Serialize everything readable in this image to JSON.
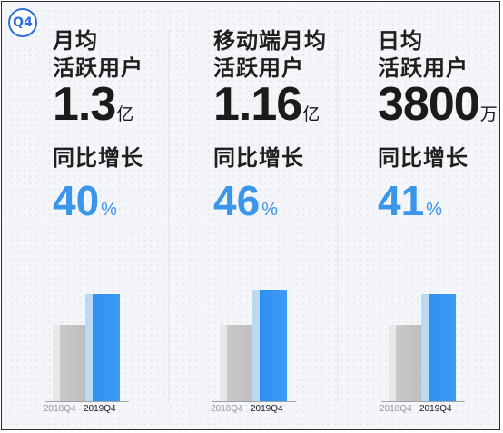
{
  "badge": "Q4",
  "growth_label": "同比增长",
  "metrics": [
    {
      "label_line1": "月均",
      "label_line2": "活跃用户",
      "value": "1.3",
      "unit": "亿",
      "growth": "40",
      "growth_unit": "%"
    },
    {
      "label_line1": "移动端月均",
      "label_line2": "活跃用户",
      "value": "1.16",
      "unit": "亿",
      "growth": "46",
      "growth_unit": "%"
    },
    {
      "label_line1": "日均",
      "label_line2": "活跃用户",
      "value": "3800",
      "unit": "万",
      "growth": "41",
      "growth_unit": "%"
    }
  ],
  "chart_data": {
    "type": "bar",
    "categories": [
      "2018Q4",
      "2019Q4"
    ],
    "series": [
      {
        "values": [
          1.0,
          1.4
        ]
      },
      {
        "values": [
          1.0,
          1.46
        ]
      },
      {
        "values": [
          1.0,
          1.41
        ]
      }
    ],
    "colors": [
      "#bdbdbd",
      "#3d9bf5"
    ]
  }
}
